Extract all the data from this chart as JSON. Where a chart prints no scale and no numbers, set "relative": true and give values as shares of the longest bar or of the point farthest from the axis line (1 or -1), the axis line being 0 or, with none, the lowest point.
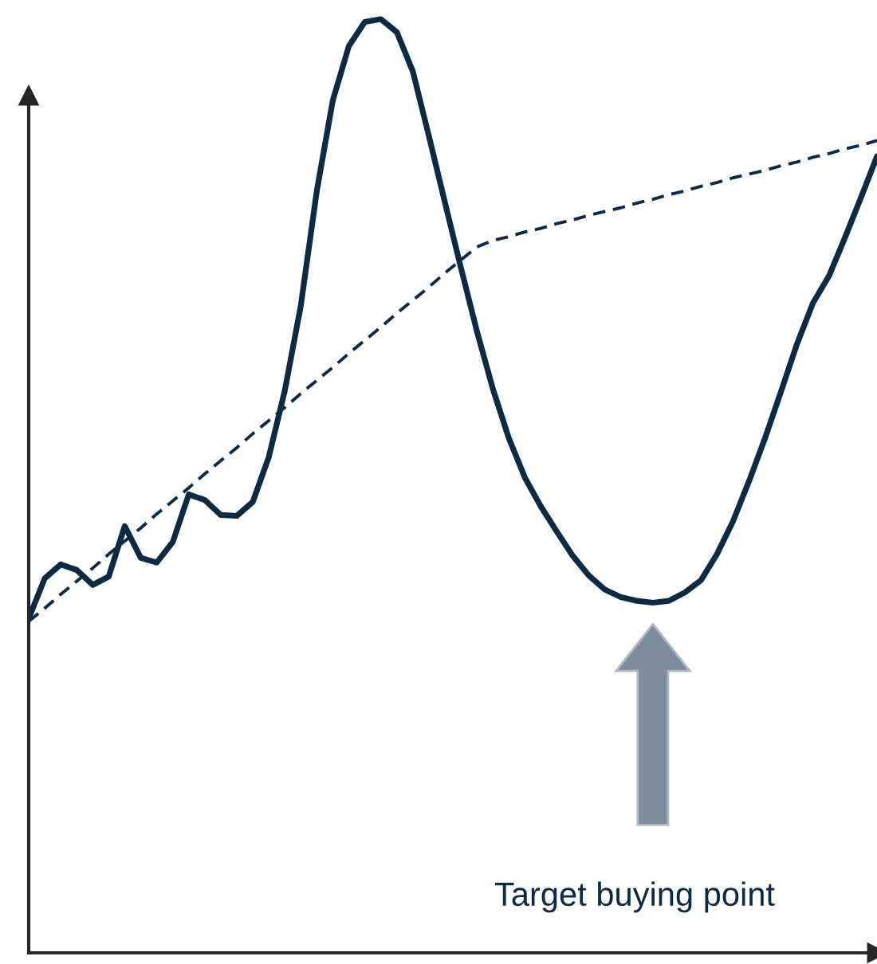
{
  "chart_data": {
    "type": "line",
    "relative": true,
    "categories": [
      null,
      null,
      null,
      null,
      null,
      null,
      null,
      null,
      null,
      null,
      null,
      null,
      null,
      null,
      null,
      null,
      null,
      null,
      null,
      null,
      null,
      null,
      null,
      null,
      null,
      null,
      null,
      null,
      null,
      null,
      null,
      null,
      null,
      null,
      null,
      null,
      null,
      null,
      null,
      null,
      null,
      null,
      null,
      null,
      null,
      null,
      null,
      null,
      null,
      null,
      null,
      null,
      null,
      null
    ],
    "series": [
      {
        "color": "#0d2a45",
        "line_style": "solid",
        "values": [
          0.358,
          0.401,
          0.416,
          0.41,
          0.394,
          0.403,
          0.457,
          0.423,
          0.418,
          0.44,
          0.491,
          0.485,
          0.469,
          0.468,
          0.483,
          0.531,
          0.602,
          0.693,
          0.816,
          0.913,
          0.971,
          0.997,
          1,
          0.986,
          0.944,
          0.875,
          0.804,
          0.734,
          0.666,
          0.604,
          0.551,
          0.509,
          0.478,
          0.451,
          0.425,
          0.404,
          0.389,
          0.381,
          0.377,
          0.375,
          0.377,
          0.386,
          0.399,
          0.427,
          0.462,
          0.505,
          0.551,
          0.601,
          0.652,
          0.696,
          0.725,
          0.766,
          0.809,
          0.853
        ]
      },
      {
        "color": "#0d2a45",
        "line_style": "dashed",
        "values": [
          0.355,
          0.369,
          0.384,
          0.398,
          0.412,
          0.427,
          0.441,
          0.455,
          0.47,
          0.484,
          0.498,
          0.513,
          0.527,
          0.541,
          0.556,
          0.57,
          0.584,
          0.599,
          0.613,
          0.627,
          0.642,
          0.656,
          0.67,
          0.685,
          0.699,
          0.713,
          0.728,
          0.742,
          0.756,
          0.763,
          0.767,
          0.772,
          0.776,
          0.781,
          0.785,
          0.79,
          0.794,
          0.798,
          0.803,
          0.807,
          0.812,
          0.816,
          0.821,
          0.825,
          0.83,
          0.834,
          0.838,
          0.843,
          0.847,
          0.852,
          0.856,
          0.861,
          0.865,
          0.87
        ]
      }
    ],
    "annotations": [
      "Target buying point"
    ],
    "marker": "none",
    "legend": false
  }
}
